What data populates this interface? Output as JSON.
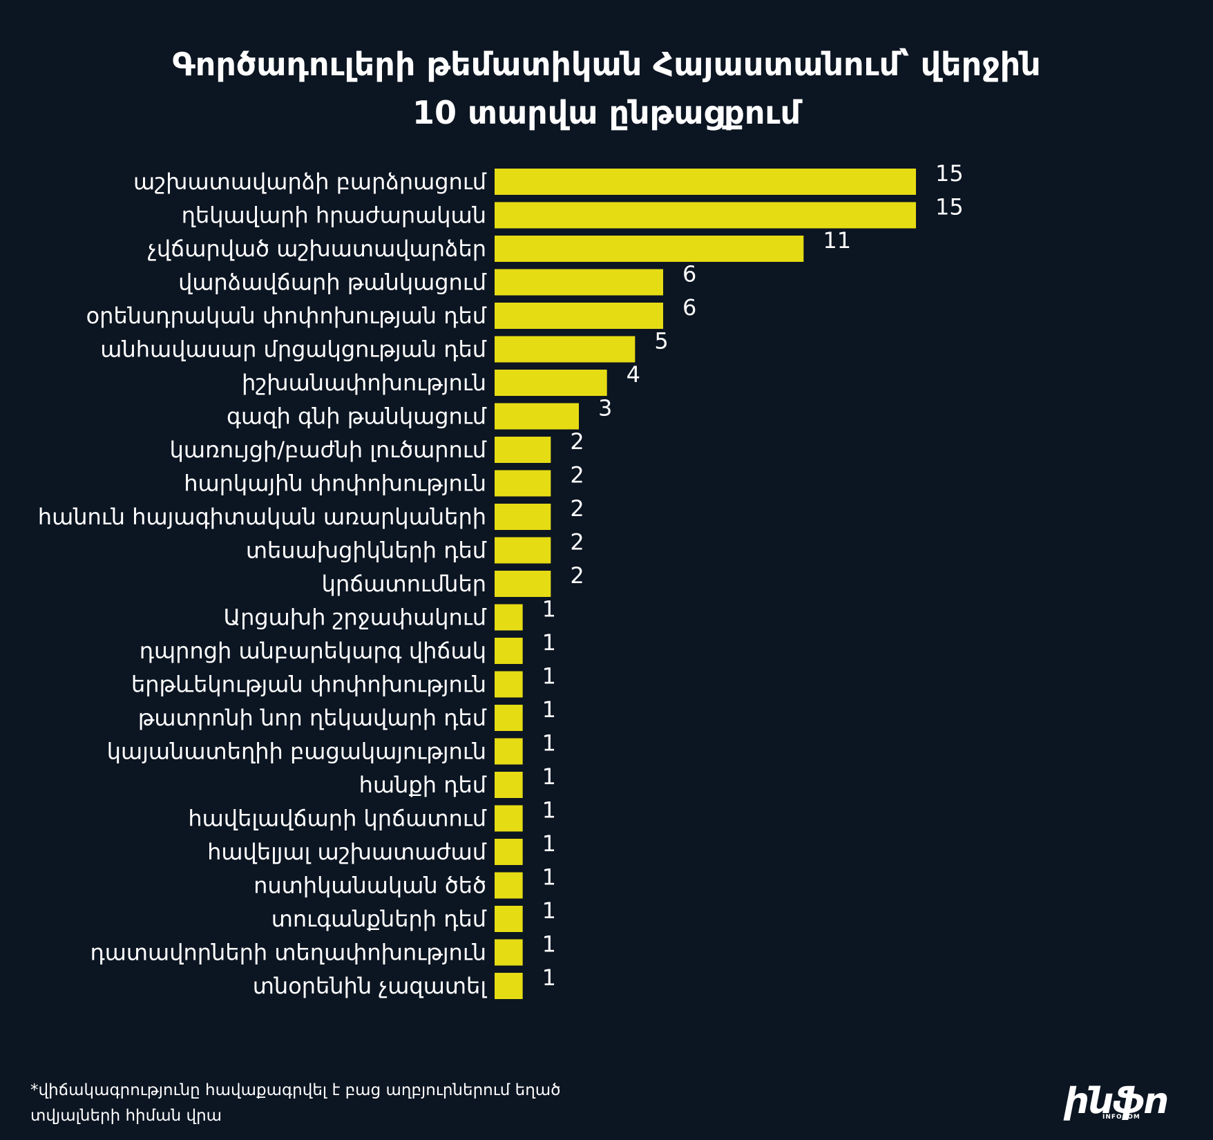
{
  "chart_data": {
    "type": "bar",
    "orientation": "horizontal",
    "title_lines": [
      "Գործադուլերի թեմատիկան Հայաստանում՝ վերջին",
      "10 տարվա ընթացքում"
    ],
    "categories": [
      "աշխատավարձի բարձրացում",
      "ղեկավարի հրաժարական",
      "չվճարված աշխատավարձեր",
      "վարձավճարի թանկացում",
      "օրենսդրական փոփոխության դեմ",
      "անհավասար մրցակցության դեմ",
      "իշխանափոխություն",
      "գազի գնի թանկացում",
      "կառույցի/բաժնի լուծարում",
      "հարկային փոփոխություն",
      "հանուն հայագիտական առարկաների",
      "տեսախցիկների դեմ",
      "կրճատումներ",
      "Արցախի շրջափակում",
      "դպրոցի անբարեկարգ վիճակ",
      "երթևեկության փոփոխություն",
      "թատրոնի նոր ղեկավարի դեմ",
      "կայանատեղիի բացակայություն",
      "հանքի դեմ",
      "հավելավճարի կրճատում",
      "հավելյալ աշխատաժամ",
      "ոստիկանական ծեծ",
      "տուգանքների դեմ",
      "դատավորների տեղափոխություն",
      "տնօրենին չազատել"
    ],
    "values": [
      15,
      15,
      11,
      6,
      6,
      5,
      4,
      3,
      2,
      2,
      2,
      2,
      2,
      1,
      1,
      1,
      1,
      1,
      1,
      1,
      1,
      1,
      1,
      1,
      1
    ],
    "value_labels": [
      "15",
      "15",
      "11",
      "6",
      "6",
      "5",
      "4",
      "3",
      "2",
      "2",
      "2",
      "2",
      "2",
      "1",
      "1",
      "1",
      "1",
      "1",
      "1",
      "1",
      "1",
      "1",
      "1",
      "1",
      "1"
    ],
    "xlim": [
      0,
      15
    ],
    "grid": false,
    "legend": "none",
    "bar_color": "#e6dc14",
    "background_color": "#0c1522",
    "text_color": "#ffffff"
  },
  "footnote_lines": [
    "*վիճակագրությունը հավաքագրվել է բաց աղբյուրներում եղած",
    "տվյալների հիման վրա"
  ],
  "logo": {
    "mark": "ինֆո",
    "subtext": "INFOCOM"
  }
}
